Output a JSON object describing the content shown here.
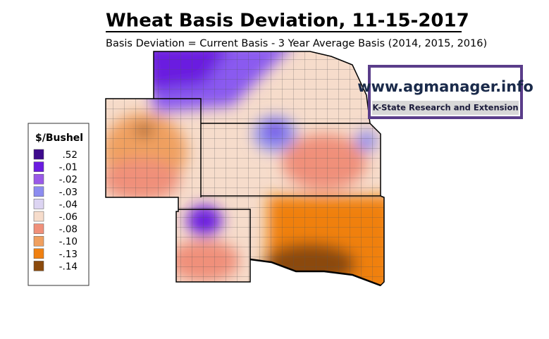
{
  "title": "Wheat Basis Deviation, 11-15-2017",
  "subtitle": "Basis Deviation = Current Basis - 3 Year Average Basis (2014, 2015, 2016)",
  "legend": {
    "title": "$/Bushel",
    "items": [
      {
        "label": ".52",
        "color": "#3d0a8c"
      },
      {
        "label": "-.01",
        "color": "#6a1be0"
      },
      {
        "label": "-.02",
        "color": "#9a5ae8"
      },
      {
        "label": "-.03",
        "color": "#8c8cf0"
      },
      {
        "label": "-.04",
        "color": "#dcd4f2"
      },
      {
        "label": "-.06",
        "color": "#f6dccb"
      },
      {
        "label": "-.08",
        "color": "#f0907a"
      },
      {
        "label": "-.10",
        "color": "#f0a060"
      },
      {
        "label": "-.13",
        "color": "#f08010"
      },
      {
        "label": "-.14",
        "color": "#8b4a0c"
      }
    ]
  },
  "logo": {
    "url": "www.agmanager.info",
    "org": "K-State Research and Extension"
  }
}
